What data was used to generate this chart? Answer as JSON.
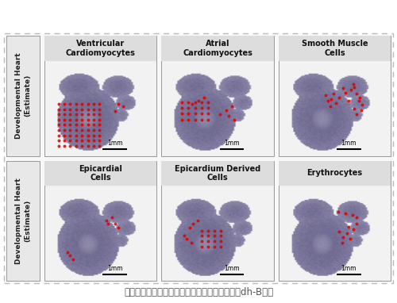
{
  "title": "发育期心脏的估计细胞类型比例概要，全部来自dh-B部分",
  "title_fontsize": 8.5,
  "title_color": "#555555",
  "background_color": "#ffffff",
  "row_labels": [
    "Developmental Heart\n(Estimate)",
    "Developmental Heart\n(Estimate)"
  ],
  "row_label_fontsize": 6.5,
  "cell_titles_row1": [
    "Ventricular\nCardiomyocytes",
    "Atrial\nCardiomyocytes",
    "Smooth Muscle\nCells"
  ],
  "cell_titles_row2": [
    "Epicardial\nCells",
    "Epicardium Derived\nCells",
    "Erythrocytes"
  ],
  "cell_title_fontsize": 7.0,
  "scale_label": "1mm",
  "scale_fontsize": 5.5,
  "dot_color": "#dd0000",
  "dot_alpha": 0.85
}
